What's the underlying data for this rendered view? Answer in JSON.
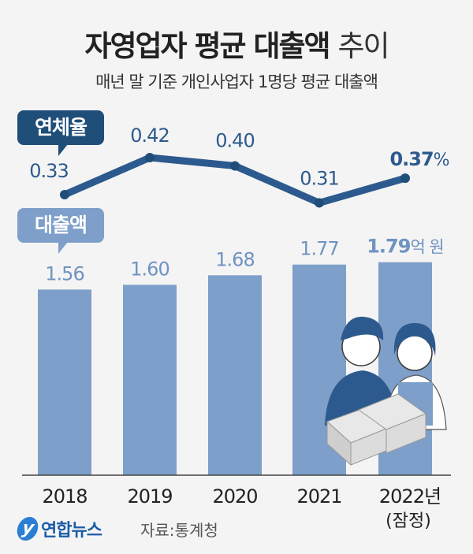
{
  "title": {
    "bold": "자영업자 평균 대출액",
    "light": "추이"
  },
  "subtitle": "매년 말 기준 개인사업자 1명당 평균 대출액",
  "badges": {
    "rate": "연체율",
    "loan": "대출액"
  },
  "footer": {
    "brand": "연합뉴스",
    "source": "자료:통계청"
  },
  "colors": {
    "line": "#2d5a8e",
    "bar": "#7d9fc9",
    "rate_badge": "#1f4e79",
    "loan_badge": "#7d9fc9",
    "bar_label": "#6f93c2"
  },
  "chart_data": {
    "type": "bar+line",
    "categories": [
      "2018",
      "2019",
      "2020",
      "2021",
      "2022년"
    ],
    "category_note": "(잠정)",
    "series": [
      {
        "name": "대출액",
        "type": "bar",
        "unit": "억 원",
        "values": [
          1.56,
          1.6,
          1.68,
          1.77,
          1.79
        ],
        "labels": [
          "1.56",
          "1.60",
          "1.68",
          "1.77",
          "1.79"
        ]
      },
      {
        "name": "연체율",
        "type": "line",
        "unit": "%",
        "values": [
          0.33,
          0.42,
          0.4,
          0.31,
          0.37
        ],
        "labels": [
          "0.33",
          "0.42",
          "0.40",
          "0.31",
          "0.37"
        ]
      }
    ],
    "grid": false
  }
}
